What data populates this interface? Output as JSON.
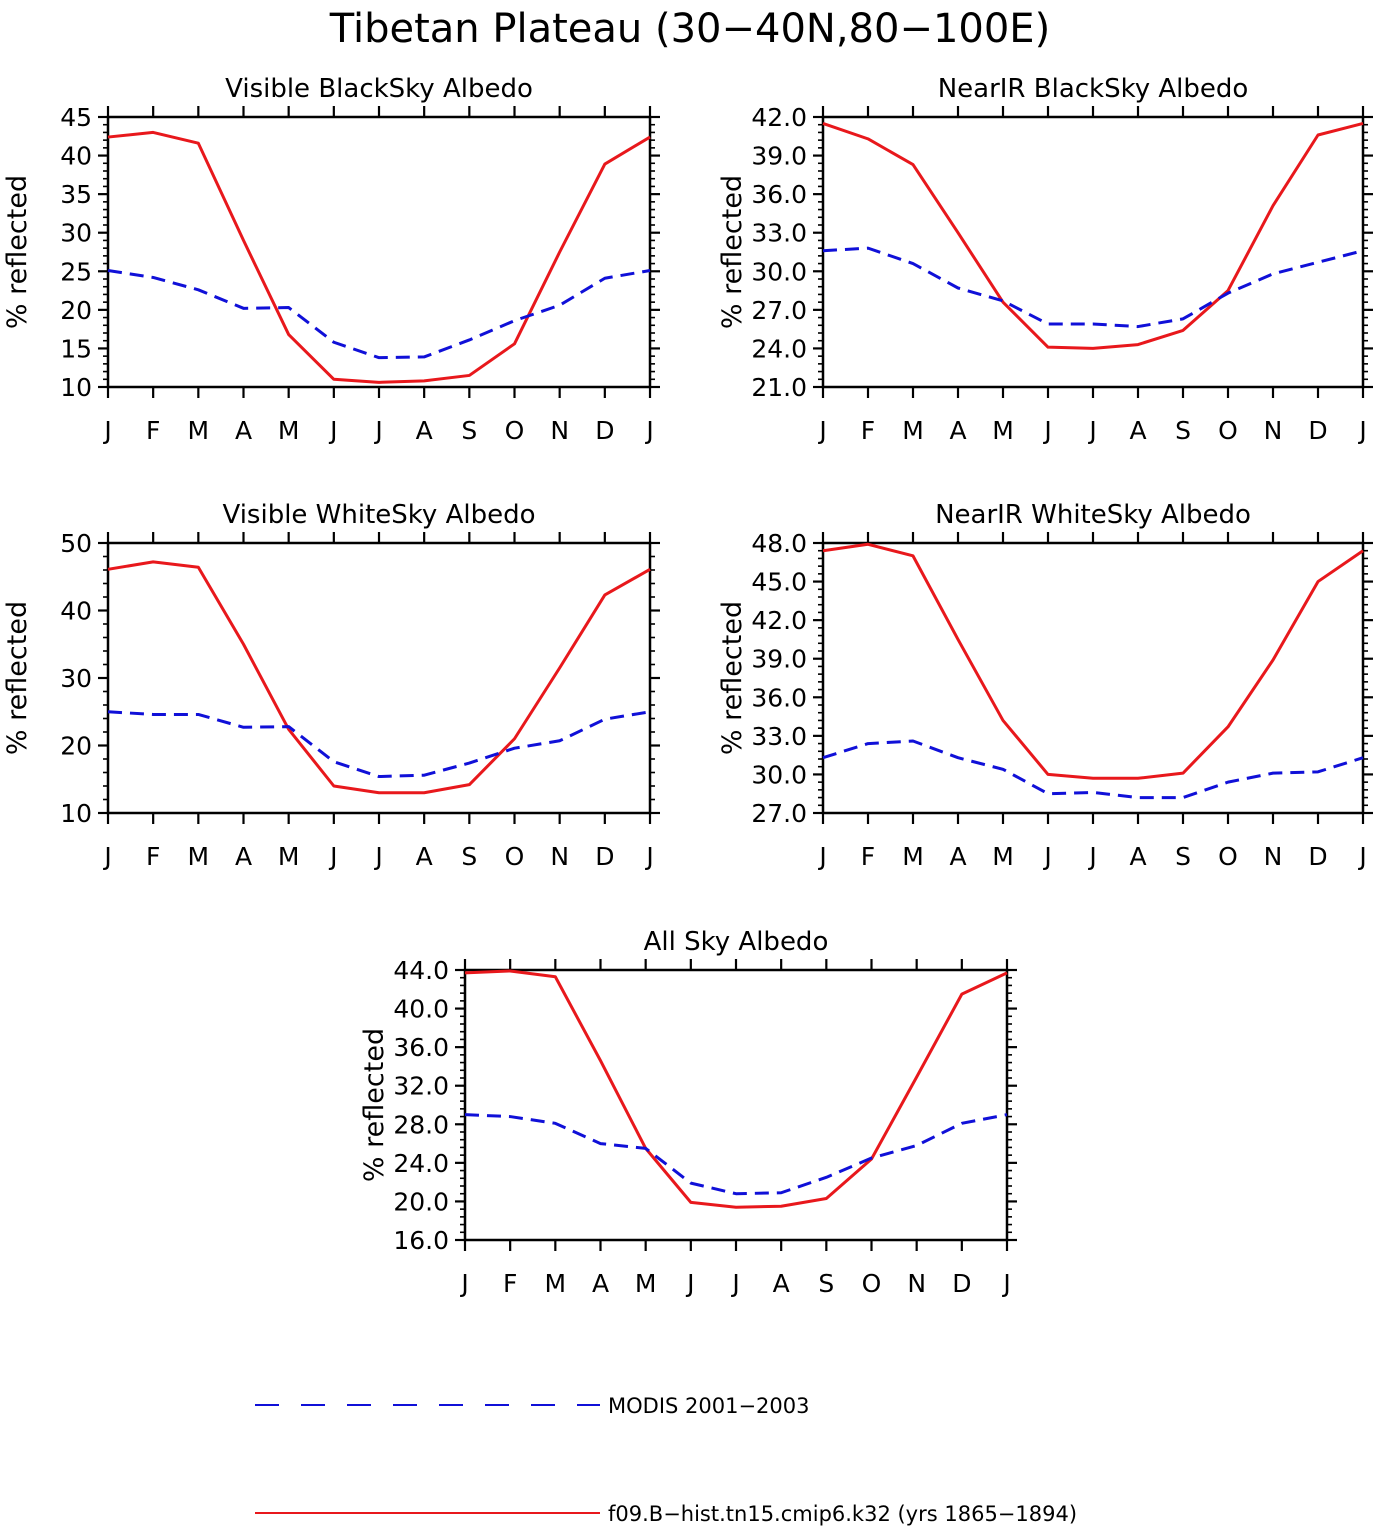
{
  "figure": {
    "title": "Tibetan Plateau (30−40N,80−100E)"
  },
  "colors": {
    "model": "#e8181c",
    "obs": "#1010d8",
    "axis": "#000000"
  },
  "legend": {
    "placement": "bottom",
    "entries": [
      {
        "label": "MODIS 2001−2003",
        "style": "dashed",
        "color": "#1010d8"
      },
      {
        "label": "f09.B−hist.tn15.cmip6.k32 (yrs 1865−1894)",
        "style": "solid",
        "color": "#e8181c"
      }
    ]
  },
  "chart_data": [
    {
      "type": "line",
      "title": "Visible BlackSky Albedo",
      "xlabel": "",
      "ylabel": "% reflected",
      "categories": [
        "J",
        "F",
        "M",
        "A",
        "M",
        "J",
        "J",
        "A",
        "S",
        "O",
        "N",
        "D",
        "J"
      ],
      "ylim": [
        10,
        45
      ],
      "yticks": [
        "10",
        "15",
        "20",
        "25",
        "30",
        "35",
        "40",
        "45"
      ],
      "series": [
        {
          "name": "f09.B−hist.tn15.cmip6.k32 (yrs 1865−1894)",
          "style": "solid",
          "values": [
            42.4,
            43.0,
            41.6,
            29.0,
            16.8,
            11.0,
            10.6,
            10.8,
            11.5,
            15.6,
            27.5,
            38.9,
            42.4
          ]
        },
        {
          "name": "MODIS 2001−2003",
          "style": "dashed",
          "values": [
            25.1,
            24.2,
            22.6,
            20.2,
            20.3,
            15.8,
            13.8,
            13.9,
            16.1,
            18.6,
            20.6,
            24.1,
            25.1
          ]
        }
      ]
    },
    {
      "type": "line",
      "title": "NearIR BlackSky Albedo",
      "xlabel": "",
      "ylabel": "% reflected",
      "categories": [
        "J",
        "F",
        "M",
        "A",
        "M",
        "J",
        "J",
        "A",
        "S",
        "O",
        "N",
        "D",
        "J"
      ],
      "ylim": [
        21.0,
        42.0
      ],
      "yticks": [
        "21.0",
        "24.0",
        "27.0",
        "30.0",
        "33.0",
        "36.0",
        "39.0",
        "42.0"
      ],
      "series": [
        {
          "name": "f09.B−hist.tn15.cmip6.k32 (yrs 1865−1894)",
          "style": "solid",
          "values": [
            41.5,
            40.3,
            38.3,
            33.0,
            27.6,
            24.1,
            24.0,
            24.3,
            25.4,
            28.5,
            35.1,
            40.6,
            41.5
          ]
        },
        {
          "name": "MODIS 2001−2003",
          "style": "dashed",
          "values": [
            31.6,
            31.8,
            30.6,
            28.7,
            27.7,
            25.9,
            25.9,
            25.7,
            26.3,
            28.3,
            29.8,
            30.7,
            31.6
          ]
        }
      ]
    },
    {
      "type": "line",
      "title": "Visible WhiteSky Albedo",
      "xlabel": "",
      "ylabel": "% reflected",
      "categories": [
        "J",
        "F",
        "M",
        "A",
        "M",
        "J",
        "J",
        "A",
        "S",
        "O",
        "N",
        "D",
        "J"
      ],
      "ylim": [
        10,
        50
      ],
      "yticks": [
        "10",
        "20",
        "30",
        "40",
        "50"
      ],
      "series": [
        {
          "name": "f09.B−hist.tn15.cmip6.k32 (yrs 1865−1894)",
          "style": "solid",
          "values": [
            46.1,
            47.2,
            46.4,
            35.0,
            22.4,
            14.0,
            13.0,
            13.0,
            14.2,
            21.0,
            31.5,
            42.3,
            46.1
          ]
        },
        {
          "name": "MODIS 2001−2003",
          "style": "dashed",
          "values": [
            25.0,
            24.6,
            24.6,
            22.7,
            22.8,
            17.6,
            15.4,
            15.6,
            17.4,
            19.6,
            20.7,
            23.9,
            25.0
          ]
        }
      ]
    },
    {
      "type": "line",
      "title": "NearIR WhiteSky Albedo",
      "xlabel": "",
      "ylabel": "% reflected",
      "categories": [
        "J",
        "F",
        "M",
        "A",
        "M",
        "J",
        "J",
        "A",
        "S",
        "O",
        "N",
        "D",
        "J"
      ],
      "ylim": [
        27.0,
        48.0
      ],
      "yticks": [
        "27.0",
        "30.0",
        "33.0",
        "36.0",
        "39.0",
        "42.0",
        "45.0",
        "48.0"
      ],
      "series": [
        {
          "name": "f09.B−hist.tn15.cmip6.k32 (yrs 1865−1894)",
          "style": "solid",
          "values": [
            47.4,
            47.9,
            47.0,
            40.5,
            34.2,
            30.0,
            29.7,
            29.7,
            30.1,
            33.7,
            38.9,
            45.0,
            47.4
          ]
        },
        {
          "name": "MODIS 2001−2003",
          "style": "dashed",
          "values": [
            31.3,
            32.4,
            32.6,
            31.3,
            30.4,
            28.5,
            28.6,
            28.2,
            28.2,
            29.4,
            30.1,
            30.2,
            31.3
          ]
        }
      ]
    },
    {
      "type": "line",
      "title": "All Sky Albedo",
      "xlabel": "",
      "ylabel": "% reflected",
      "categories": [
        "J",
        "F",
        "M",
        "A",
        "M",
        "J",
        "J",
        "A",
        "S",
        "O",
        "N",
        "D",
        "J"
      ],
      "ylim": [
        16.0,
        44.0
      ],
      "yticks": [
        "16.0",
        "20.0",
        "24.0",
        "28.0",
        "32.0",
        "36.0",
        "40.0",
        "44.0"
      ],
      "series": [
        {
          "name": "f09.B−hist.tn15.cmip6.k32 (yrs 1865−1894)",
          "style": "solid",
          "values": [
            43.7,
            43.9,
            43.3,
            34.6,
            25.5,
            19.9,
            19.4,
            19.5,
            20.3,
            24.4,
            32.9,
            41.5,
            43.7
          ]
        },
        {
          "name": "MODIS 2001−2003",
          "style": "dashed",
          "values": [
            29.0,
            28.8,
            28.1,
            26.0,
            25.5,
            21.9,
            20.8,
            20.9,
            22.5,
            24.5,
            25.8,
            28.1,
            29.0
          ]
        }
      ]
    }
  ]
}
